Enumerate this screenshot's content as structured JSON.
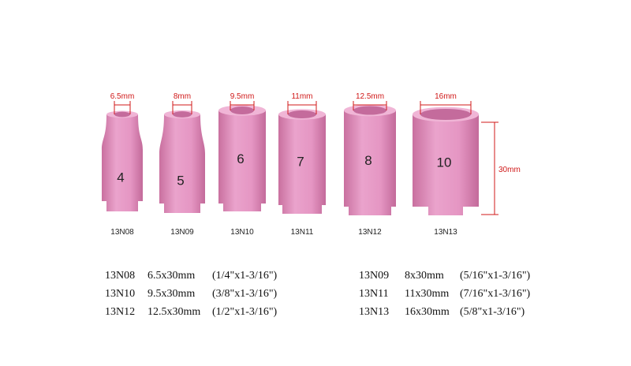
{
  "nozzles": [
    {
      "opening": "6.5mm",
      "number": "4",
      "code": "13N08"
    },
    {
      "opening": "8mm",
      "number": "5",
      "code": "13N09"
    },
    {
      "opening": "9.5mm",
      "number": "6",
      "code": "13N10"
    },
    {
      "opening": "11mm",
      "number": "7",
      "code": "13N11"
    },
    {
      "opening": "12.5mm",
      "number": "8",
      "code": "13N12"
    },
    {
      "opening": "16mm",
      "number": "10",
      "code": "13N13"
    }
  ],
  "height_label": "30mm",
  "specs": [
    {
      "code": "13N08",
      "size": "6.5x30mm",
      "inch": "(1/4\"x1-3/16\")"
    },
    {
      "code": "13N09",
      "size": "8x30mm",
      "inch": "(5/16\"x1-3/16\")"
    },
    {
      "code": "13N10",
      "size": "9.5x30mm",
      "inch": "(3/8\"x1-3/16\")"
    },
    {
      "code": "13N11",
      "size": "11x30mm",
      "inch": "(7/16\"x1-3/16\")"
    },
    {
      "code": "13N12",
      "size": "12.5x30mm",
      "inch": "(1/2\"x1-3/16\")"
    },
    {
      "code": "13N13",
      "size": "16x30mm",
      "inch": "(5/8\"x1-3/16\")"
    }
  ]
}
